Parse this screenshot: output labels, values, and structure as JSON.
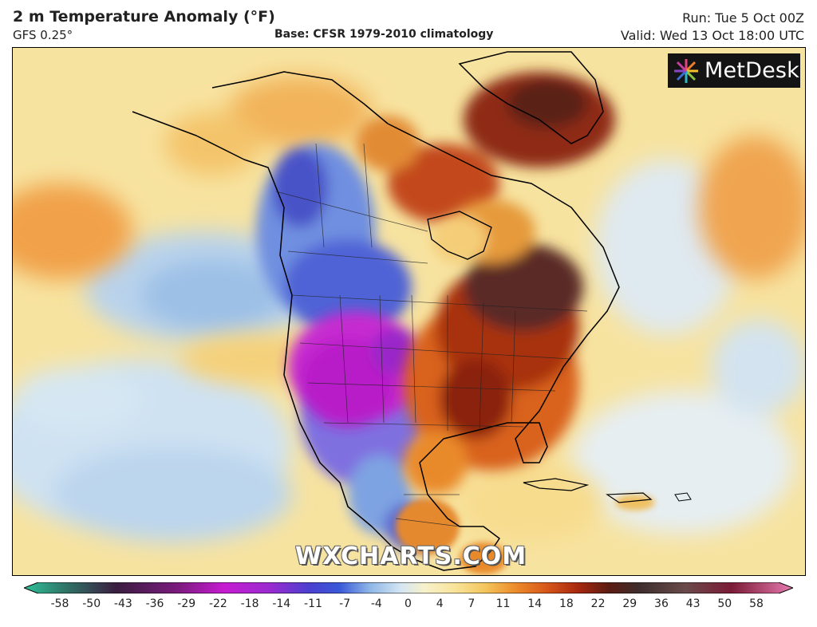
{
  "header": {
    "title": "2 m Temperature Anomaly (°F)",
    "model": "GFS 0.25°",
    "base": "Base: CFSR 1979-2010 climatology",
    "run": "Run: Tue 5 Oct 00Z",
    "valid": "Valid: Wed 13 Oct 18:00 UTC"
  },
  "logo": {
    "text": "MetDesk"
  },
  "watermark": "WXCHARTS.COM",
  "colorbar": {
    "ticks": [
      "-58",
      "-50",
      "-43",
      "-36",
      "-29",
      "-22",
      "-18",
      "-14",
      "-11",
      "-7",
      "-4",
      "0",
      "4",
      "7",
      "11",
      "14",
      "18",
      "22",
      "29",
      "36",
      "43",
      "50",
      "58"
    ],
    "colors": {
      "neg_extreme": "#2fc29a",
      "deep_purple": "#5a1f7a",
      "magenta": "#c61bd1",
      "violet": "#7a34c9",
      "blue": "#3a58d8",
      "light_blue": "#8fb7e6",
      "pale_blue": "#d4e6f3",
      "neutral": "#f7f1cc",
      "pale_yellow": "#f8e49a",
      "yellow_orange": "#f4c55c",
      "orange": "#ec8a2a",
      "dark_orange": "#d7561a",
      "red_brown": "#a8280f",
      "dark_brown": "#5c1c12",
      "dark_grey": "#3d2d2d",
      "maroon": "#7c1b37",
      "pink": "#e77bb0"
    }
  }
}
